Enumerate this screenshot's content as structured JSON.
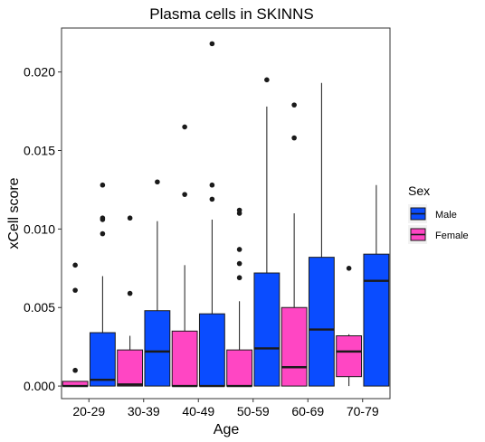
{
  "chart_data": {
    "type": "boxplot",
    "title": "Plasma cells in SKINNS",
    "xlabel": "Age",
    "ylabel": "xCell score",
    "categories": [
      "20-29",
      "30-39",
      "40-49",
      "50-59",
      "60-69",
      "70-79"
    ],
    "yticks": [
      "0.000",
      "0.005",
      "0.010",
      "0.015",
      "0.020"
    ],
    "ylim": [
      -0.0008,
      0.0228
    ],
    "grid": false,
    "legend": {
      "title": "Sex",
      "placement": "right",
      "entries": [
        {
          "label": "Male",
          "color": "#0a4cff"
        },
        {
          "label": "Female",
          "color": "#ff46c3"
        }
      ]
    },
    "series": [
      {
        "name": "Female",
        "color": "#ff46c3",
        "boxes": [
          {
            "category": "20-29",
            "whisker_low": 0.0,
            "q1": 0.0,
            "median": 0.0,
            "q3": 0.0003,
            "whisker_high": 0.0003,
            "outliers": [
              0.001,
              0.0061,
              0.0077
            ]
          },
          {
            "category": "30-39",
            "whisker_low": 0.0,
            "q1": 0.0,
            "median": 0.0001,
            "q3": 0.0023,
            "whisker_high": 0.0032,
            "outliers": [
              0.0059,
              0.0107
            ]
          },
          {
            "category": "40-49",
            "whisker_low": 0.0,
            "q1": 0.0,
            "median": 0.0,
            "q3": 0.0035,
            "whisker_high": 0.0077,
            "outliers": [
              0.0122,
              0.0165
            ]
          },
          {
            "category": "50-59",
            "whisker_low": 0.0,
            "q1": 0.0,
            "median": 0.0,
            "q3": 0.0023,
            "whisker_high": 0.0054,
            "outliers": [
              0.0069,
              0.0078,
              0.0087,
              0.011,
              0.0112
            ]
          },
          {
            "category": "60-69",
            "whisker_low": 0.0,
            "q1": 0.0,
            "median": 0.0012,
            "q3": 0.005,
            "whisker_high": 0.011,
            "outliers": [
              0.0158,
              0.0179
            ]
          },
          {
            "category": "70-79",
            "whisker_low": 0.0,
            "q1": 0.0006,
            "median": 0.0022,
            "q3": 0.0032,
            "whisker_high": 0.0033,
            "outliers": [
              0.0075
            ]
          }
        ]
      },
      {
        "name": "Male",
        "color": "#0a4cff",
        "boxes": [
          {
            "category": "20-29",
            "whisker_low": 0.0,
            "q1": 0.0,
            "median": 0.0004,
            "q3": 0.0034,
            "whisker_high": 0.007,
            "outliers": [
              0.0097,
              0.0106,
              0.0107,
              0.0128
            ]
          },
          {
            "category": "30-39",
            "whisker_low": 0.0,
            "q1": 0.0,
            "median": 0.0022,
            "q3": 0.0048,
            "whisker_high": 0.0105,
            "outliers": [
              0.013
            ]
          },
          {
            "category": "40-49",
            "whisker_low": 0.0,
            "q1": 0.0,
            "median": 0.0,
            "q3": 0.0046,
            "whisker_high": 0.0106,
            "outliers": [
              0.0119,
              0.0128,
              0.0218
            ]
          },
          {
            "category": "50-59",
            "whisker_low": 0.0,
            "q1": 0.0,
            "median": 0.0024,
            "q3": 0.0072,
            "whisker_high": 0.0178,
            "outliers": [
              0.0195
            ]
          },
          {
            "category": "60-69",
            "whisker_low": 0.0,
            "q1": 0.0,
            "median": 0.0036,
            "q3": 0.0082,
            "whisker_high": 0.0193,
            "outliers": []
          },
          {
            "category": "70-79",
            "whisker_low": 0.0,
            "q1": 0.0,
            "median": 0.0067,
            "q3": 0.0084,
            "whisker_high": 0.0128,
            "outliers": []
          }
        ]
      }
    ]
  }
}
